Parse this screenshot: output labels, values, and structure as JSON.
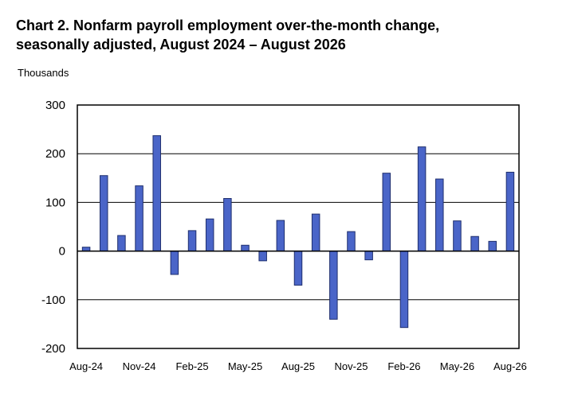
{
  "chart_data": {
    "type": "bar",
    "title": "Chart 2. Nonfarm payroll employment over-the-month change,",
    "subtitle": "seasonally adjusted, August 2024 – August 2026",
    "ylabel": "Thousands",
    "ylim": [
      -200,
      300
    ],
    "yticks": [
      300,
      200,
      100,
      0,
      -100,
      -200
    ],
    "grid": true,
    "bar_color": "#4a65c8",
    "categories": [
      "Aug-24",
      "Sep-24",
      "Oct-24",
      "Nov-24",
      "Dec-24",
      "Jan-25",
      "Feb-25",
      "Mar-25",
      "Apr-25",
      "May-25",
      "Jun-25",
      "Jul-25",
      "Aug-25",
      "Sep-25",
      "Oct-25",
      "Nov-25",
      "Dec-25",
      "Jan-26",
      "Feb-26",
      "Mar-26",
      "Apr-26",
      "May-26",
      "Jun-26",
      "Jul-26",
      "Aug-26"
    ],
    "xtick_labels": [
      "Aug-24",
      "Nov-24",
      "Feb-25",
      "May-25",
      "Aug-25",
      "Nov-25",
      "Feb-26",
      "May-26",
      "Aug-26"
    ],
    "values": [
      8,
      155,
      32,
      134,
      237,
      -48,
      42,
      66,
      108,
      12,
      -20,
      63,
      -70,
      76,
      -140,
      40,
      -18,
      160,
      -157,
      214,
      148,
      62,
      30,
      20,
      162
    ]
  }
}
